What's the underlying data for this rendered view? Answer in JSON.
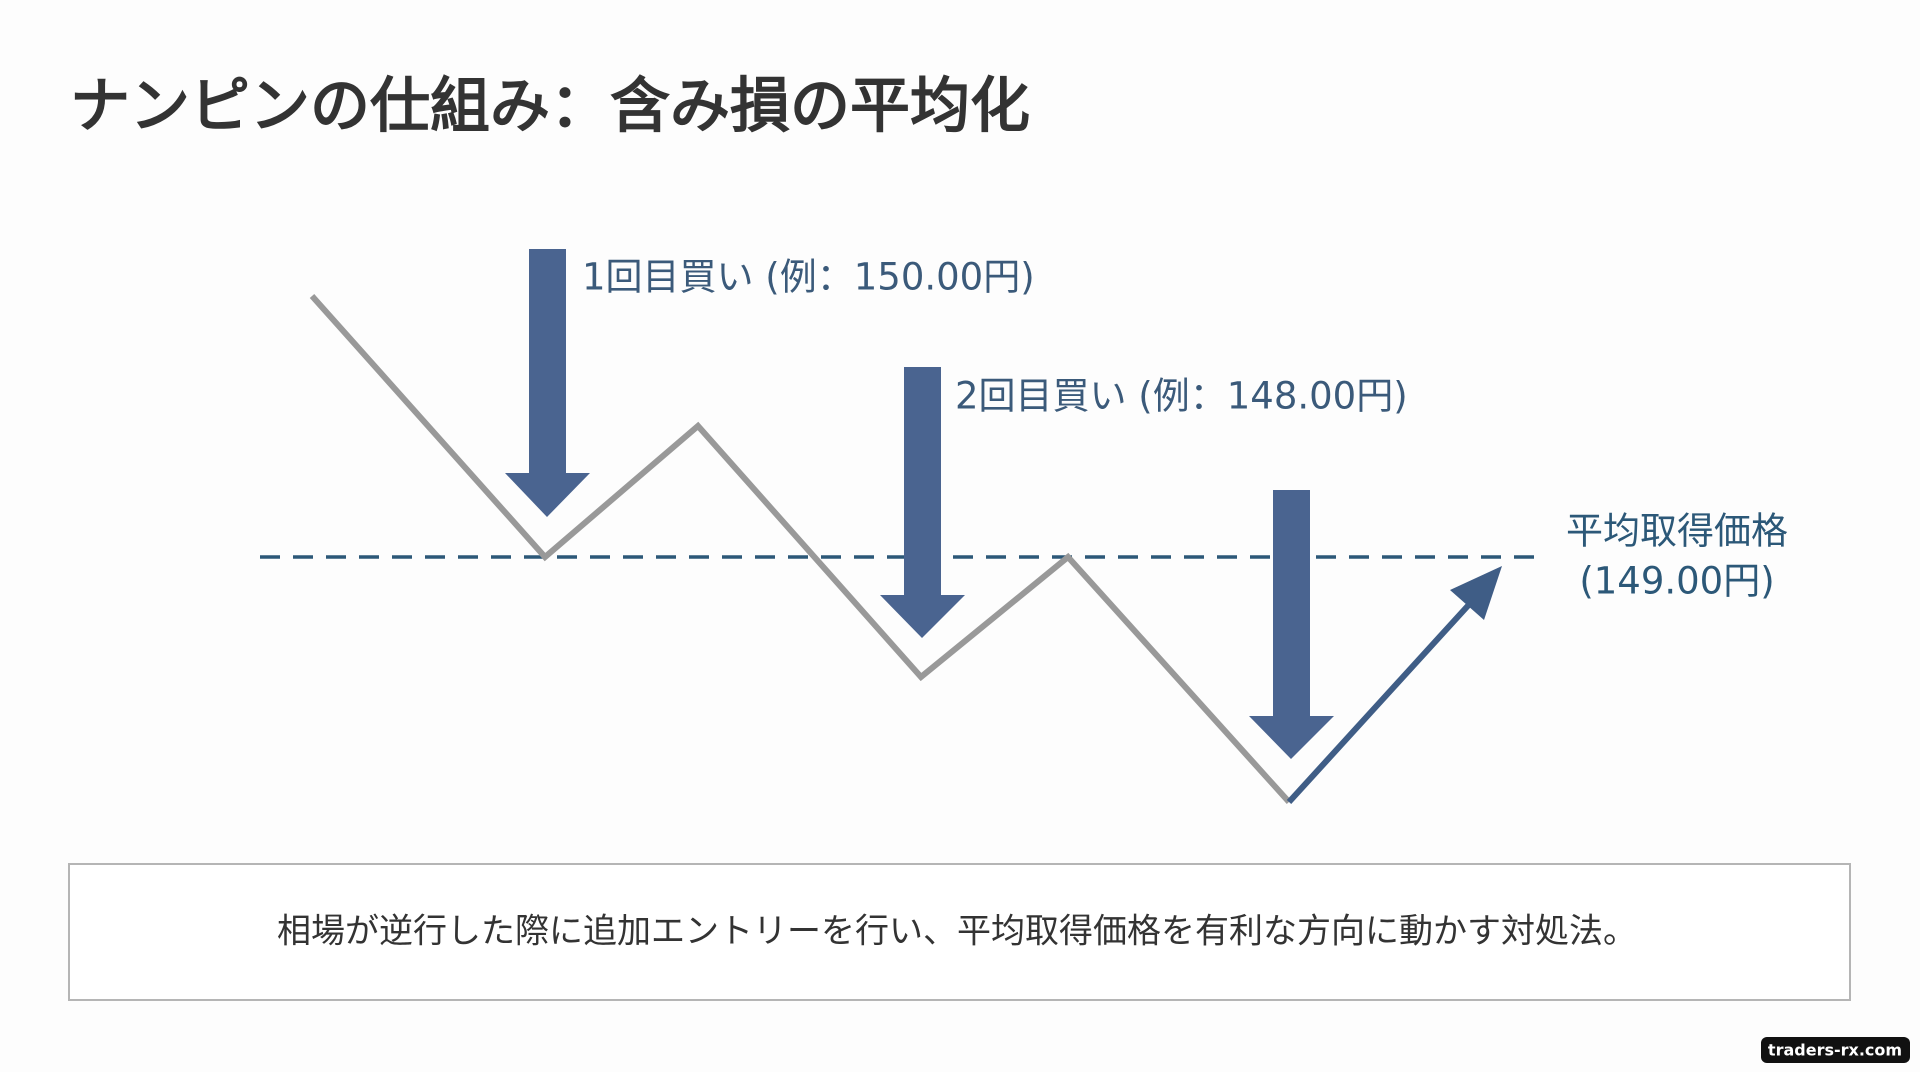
{
  "title": "ナンピンの仕組み：含み損の平均化",
  "buy_labels": [
    "1回目買い (例：150.00円)",
    "2回目買い (例：148.00円)"
  ],
  "average_label": [
    "平均取得価格",
    "(149.00円)"
  ],
  "caption": "相場が逆行した際に追加エントリーを行い、平均取得価格を有利な方向に動かす対処法。",
  "watermark": "traders-rx.com"
}
